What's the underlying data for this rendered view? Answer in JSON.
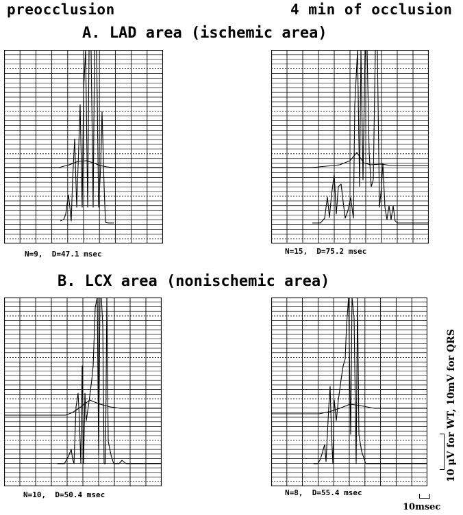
{
  "headers": {
    "preocclusion": "preocclusion",
    "occlusion": "4 min of occlusion"
  },
  "sections": {
    "a_title": "A. LAD area (ischemic area)",
    "b_title": "B. LCX area (nonischemic area)"
  },
  "panels": {
    "a_pre": {
      "caption": "N=9,  D=47.1 msec"
    },
    "a_occ": {
      "caption": "N=15,  D=75.2 msec"
    },
    "b_pre": {
      "caption": "N=10,  D=50.4 msec"
    },
    "b_occ": {
      "caption": "N=8,  D=55.4 msec"
    }
  },
  "scale": {
    "vertical_label": "10 μV for WT, 10mV for QRS",
    "horizontal_label": "10msec"
  },
  "colors": {
    "ink": "#000000",
    "grid": "#000000",
    "dotted_grid": "#333333"
  }
}
